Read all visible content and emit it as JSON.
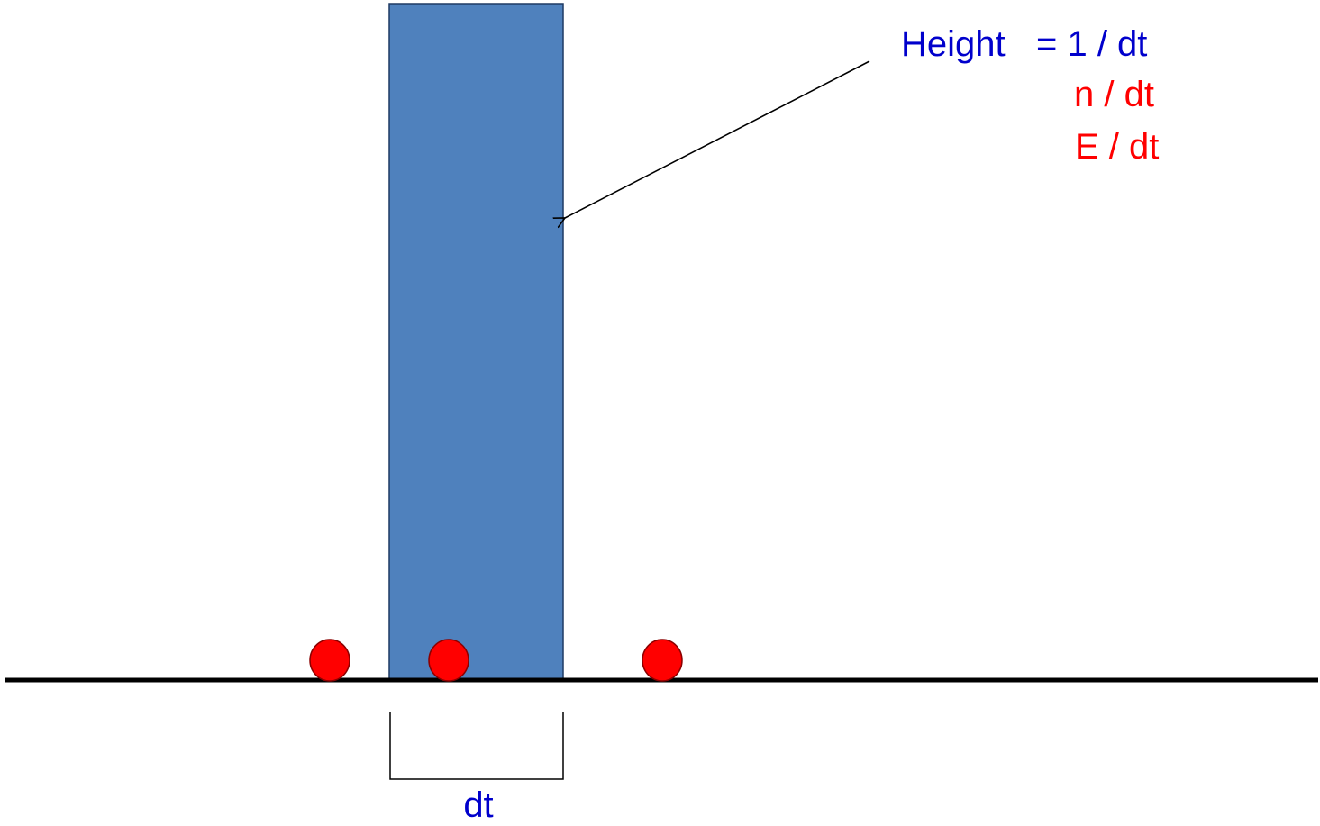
{
  "colors": {
    "bar_fill": "#4f81bd",
    "bar_stroke": "#1f3a64",
    "particle_fill": "#ff0000",
    "particle_stroke": "#8b0000",
    "axis": "#000000",
    "label_blue": "#0000cc",
    "label_red": "#ff0000"
  },
  "labels": {
    "height_prefix": "Height",
    "height_value_1": "= 1 / dt",
    "height_value_2": "n / dt",
    "height_value_3": "E / dt",
    "width": "dt"
  },
  "particles_count": 3
}
